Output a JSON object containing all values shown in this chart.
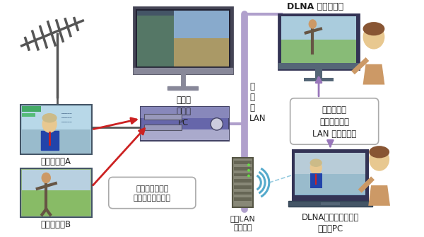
{
  "bg_color": "#ffffff",
  "labels": {
    "home_server": "ホーム\nサーバ\nPC",
    "channel_a": "チャンネルA",
    "channel_b": "チャンネルB",
    "dlna_tv": "DLNA 対応テレビ",
    "dlna_pc": "DLNAクライアントが\n入ったPC",
    "wireless_router": "無線LAN\nルーター",
    "home_lan": "家\n庭\n内\nLAN",
    "note1": "デジタル放送を\n２番組同時に録画",
    "note2": "録画番組を\n２番組同時に\nLAN 経由で配信"
  },
  "colors": {
    "arrow_red": "#cc2222",
    "arrow_purple": "#9977bb",
    "lan_line": "#b0a0cc",
    "wifi_color": "#55aacc",
    "note_border": "#aaaaaa",
    "text_dark": "#222222",
    "antenna_color": "#555555",
    "monitor_frame": "#444455",
    "monitor_stand": "#888899",
    "screen_blue": "#7ab0cc",
    "screen_green": "#88bb88",
    "pc_tower_top": "#6666aa",
    "pc_tower_mid": "#8888bb",
    "pc_tower_bot": "#aaaacc",
    "pc_tower_dark": "#444466",
    "pc_circle": "#ccccdd",
    "channel_a_bg": "#aaccdd",
    "channel_b_bg": "#aabb99",
    "person_skin": "#e8c890",
    "person_hair": "#885533",
    "person_shirt_blue": "#2244aa",
    "person_shirt_tan": "#cc9966",
    "tv_frame": "#333355",
    "tv_screen_blue": "#77aacc",
    "tv_screen_green": "#99cc88",
    "laptop_frame": "#333355",
    "router_body": "#888877",
    "router_stripe": "#666655"
  }
}
